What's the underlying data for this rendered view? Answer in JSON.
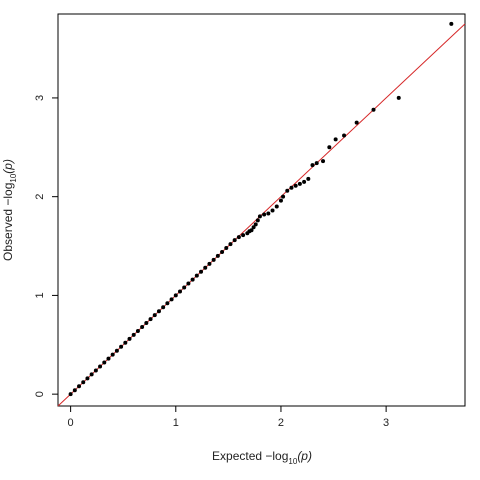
{
  "chart_data": {
    "type": "scatter",
    "title": "",
    "xlabel": {
      "prefix": "Expected  −log",
      "subscript": "10",
      "suffix": "(p)"
    },
    "ylabel": {
      "prefix": "Observed  −log",
      "subscript": "10",
      "suffix": "(p)"
    },
    "xlim": [
      -0.12,
      3.75
    ],
    "ylim": [
      -0.12,
      3.85
    ],
    "x_ticks": [
      0,
      1,
      2,
      3
    ],
    "y_ticks": [
      0,
      1,
      2,
      3
    ],
    "x_tick_labels": [
      "0",
      "1",
      "2",
      "3"
    ],
    "y_tick_labels": [
      "0",
      "1",
      "2",
      "3"
    ],
    "grid": false,
    "colors": {
      "points": "#000000",
      "reference_line": "#d62728",
      "axes": "#000000"
    },
    "reference_line": {
      "slope": 1,
      "intercept": 0,
      "label": ""
    },
    "series": [
      {
        "points": [
          [
            0.0,
            0.0
          ],
          [
            0.04,
            0.04
          ],
          [
            0.08,
            0.08
          ],
          [
            0.12,
            0.12
          ],
          [
            0.16,
            0.16
          ],
          [
            0.2,
            0.2
          ],
          [
            0.24,
            0.24
          ],
          [
            0.28,
            0.28
          ],
          [
            0.32,
            0.32
          ],
          [
            0.36,
            0.36
          ],
          [
            0.4,
            0.4
          ],
          [
            0.44,
            0.44
          ],
          [
            0.48,
            0.48
          ],
          [
            0.52,
            0.52
          ],
          [
            0.56,
            0.56
          ],
          [
            0.6,
            0.6
          ],
          [
            0.64,
            0.64
          ],
          [
            0.68,
            0.68
          ],
          [
            0.72,
            0.72
          ],
          [
            0.76,
            0.76
          ],
          [
            0.8,
            0.8
          ],
          [
            0.84,
            0.84
          ],
          [
            0.88,
            0.88
          ],
          [
            0.92,
            0.92
          ],
          [
            0.96,
            0.96
          ],
          [
            1.0,
            1.0
          ],
          [
            1.04,
            1.04
          ],
          [
            1.08,
            1.08
          ],
          [
            1.12,
            1.12
          ],
          [
            1.16,
            1.16
          ],
          [
            1.2,
            1.2
          ],
          [
            1.24,
            1.24
          ],
          [
            1.28,
            1.28
          ],
          [
            1.32,
            1.32
          ],
          [
            1.36,
            1.36
          ],
          [
            1.4,
            1.4
          ],
          [
            1.44,
            1.44
          ],
          [
            1.48,
            1.48
          ],
          [
            1.52,
            1.52
          ],
          [
            1.56,
            1.56
          ],
          [
            1.6,
            1.59
          ],
          [
            1.64,
            1.61
          ],
          [
            1.68,
            1.63
          ],
          [
            1.7,
            1.65
          ],
          [
            1.72,
            1.66
          ],
          [
            1.74,
            1.69
          ],
          [
            1.76,
            1.72
          ],
          [
            1.78,
            1.76
          ],
          [
            1.8,
            1.8
          ],
          [
            1.84,
            1.82
          ],
          [
            1.88,
            1.83
          ],
          [
            1.92,
            1.86
          ],
          [
            1.96,
            1.9
          ],
          [
            2.0,
            1.96
          ],
          [
            2.02,
            2.0
          ],
          [
            2.06,
            2.06
          ],
          [
            2.1,
            2.09
          ],
          [
            2.14,
            2.11
          ],
          [
            2.18,
            2.13
          ],
          [
            2.22,
            2.15
          ],
          [
            2.26,
            2.18
          ],
          [
            2.3,
            2.32
          ],
          [
            2.34,
            2.34
          ],
          [
            2.4,
            2.36
          ],
          [
            2.46,
            2.5
          ],
          [
            2.52,
            2.58
          ],
          [
            2.6,
            2.62
          ],
          [
            2.72,
            2.75
          ],
          [
            2.88,
            2.88
          ],
          [
            3.12,
            3.0
          ],
          [
            3.62,
            3.75
          ]
        ]
      }
    ]
  }
}
